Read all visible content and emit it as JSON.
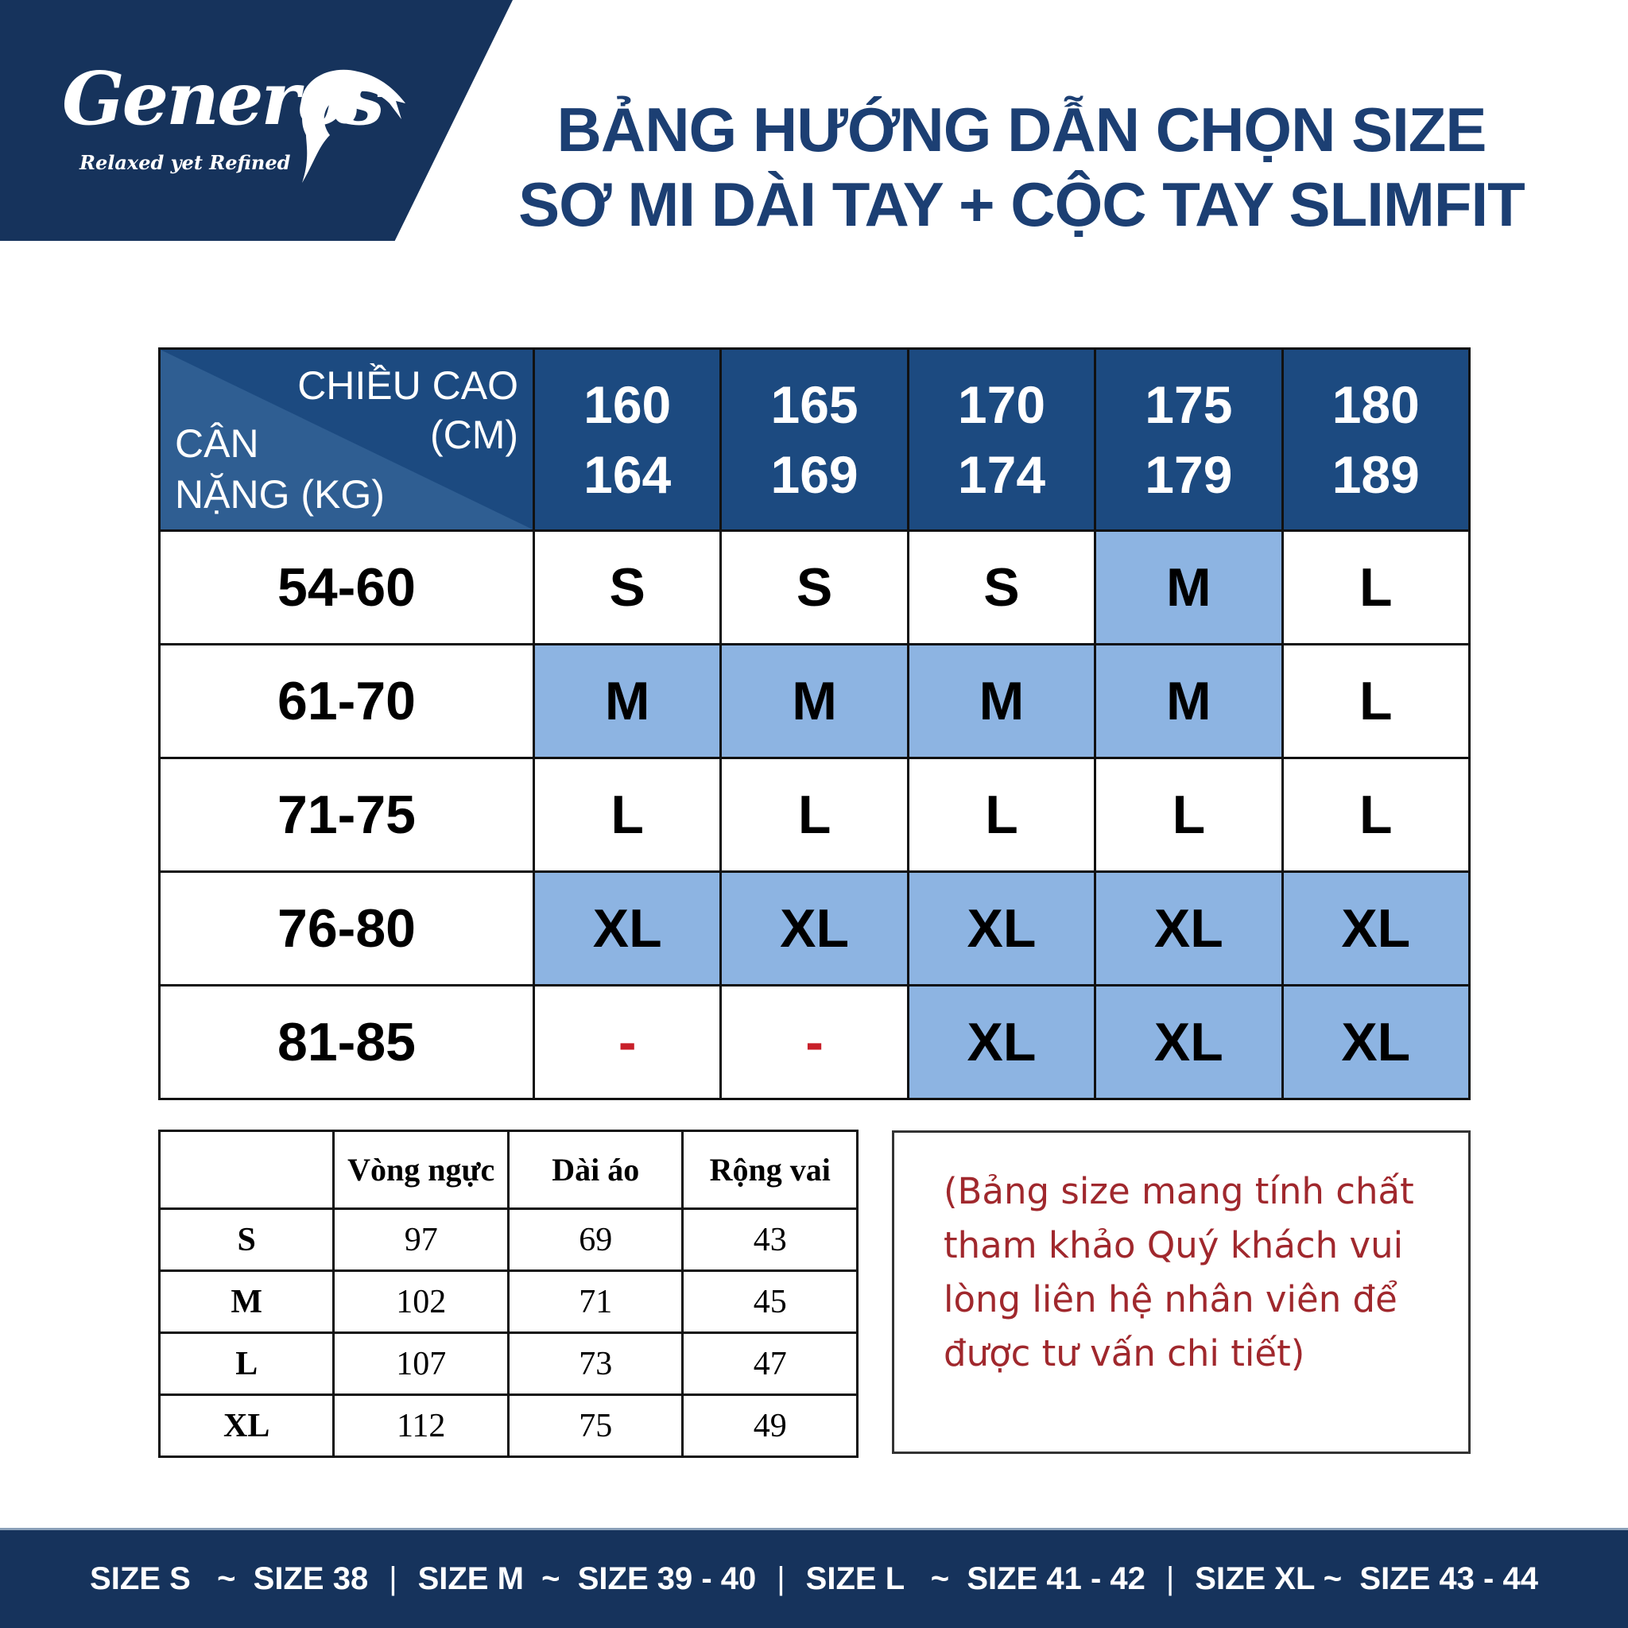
{
  "brand": {
    "name": "Generos",
    "tagline": "Relaxed yet Refined"
  },
  "title": {
    "line1": "BẢNG HƯỚNG DẪN CHỌN SIZE",
    "line2": "SƠ MI DÀI TAY + CỘC TAY SLIMFIT"
  },
  "main_table": {
    "corner": {
      "height_label_1": "CHIỀU CAO",
      "height_label_2": "(CM)",
      "weight_label_1": "CÂN",
      "weight_label_2": "NẶNG (KG)"
    },
    "columns": [
      {
        "from": "160",
        "to": "164"
      },
      {
        "from": "165",
        "to": "169"
      },
      {
        "from": "170",
        "to": "174"
      },
      {
        "from": "175",
        "to": "179"
      },
      {
        "from": "180",
        "to": "189"
      }
    ],
    "rows": [
      {
        "weight": "54-60",
        "sizes": [
          "S",
          "S",
          "S",
          "M",
          "L"
        ],
        "highlight": [
          false,
          false,
          false,
          true,
          false
        ]
      },
      {
        "weight": "61-70",
        "sizes": [
          "M",
          "M",
          "M",
          "M",
          "L"
        ],
        "highlight": [
          true,
          true,
          true,
          true,
          false
        ]
      },
      {
        "weight": "71-75",
        "sizes": [
          "L",
          "L",
          "L",
          "L",
          "L"
        ],
        "highlight": [
          false,
          false,
          false,
          false,
          false
        ]
      },
      {
        "weight": "76-80",
        "sizes": [
          "XL",
          "XL",
          "XL",
          "XL",
          "XL"
        ],
        "highlight": [
          true,
          true,
          true,
          true,
          true
        ]
      },
      {
        "weight": "81-85",
        "sizes": [
          "-",
          "-",
          "XL",
          "XL",
          "XL"
        ],
        "highlight": [
          false,
          false,
          true,
          true,
          true
        ]
      }
    ]
  },
  "spec_table": {
    "headers": [
      "",
      "Vòng ngực",
      "Dài áo",
      "Rộng vai"
    ],
    "rows": [
      [
        "S",
        "97",
        "69",
        "43"
      ],
      [
        "M",
        "102",
        "71",
        "45"
      ],
      [
        "L",
        "107",
        "73",
        "47"
      ],
      [
        "XL",
        "112",
        "75",
        "49"
      ]
    ]
  },
  "note": {
    "lines": [
      "(Bảng size mang tính chất",
      "tham khảo Quý khách vui",
      "lòng liên hệ nhân viên để",
      "được tư vấn chi tiết)"
    ]
  },
  "footer": {
    "items": [
      "SIZE S   ~  SIZE 38",
      "SIZE M  ~  SIZE 39 - 40",
      "SIZE L   ~  SIZE 41 - 42",
      "SIZE XL ~  SIZE 43 - 44"
    ],
    "separator": "|"
  },
  "colors": {
    "navy": "#16335c",
    "header_blue": "#1c4a80",
    "highlight": "#8db4e2",
    "note_red": "#a0282d",
    "dash_red": "#c8202a"
  }
}
